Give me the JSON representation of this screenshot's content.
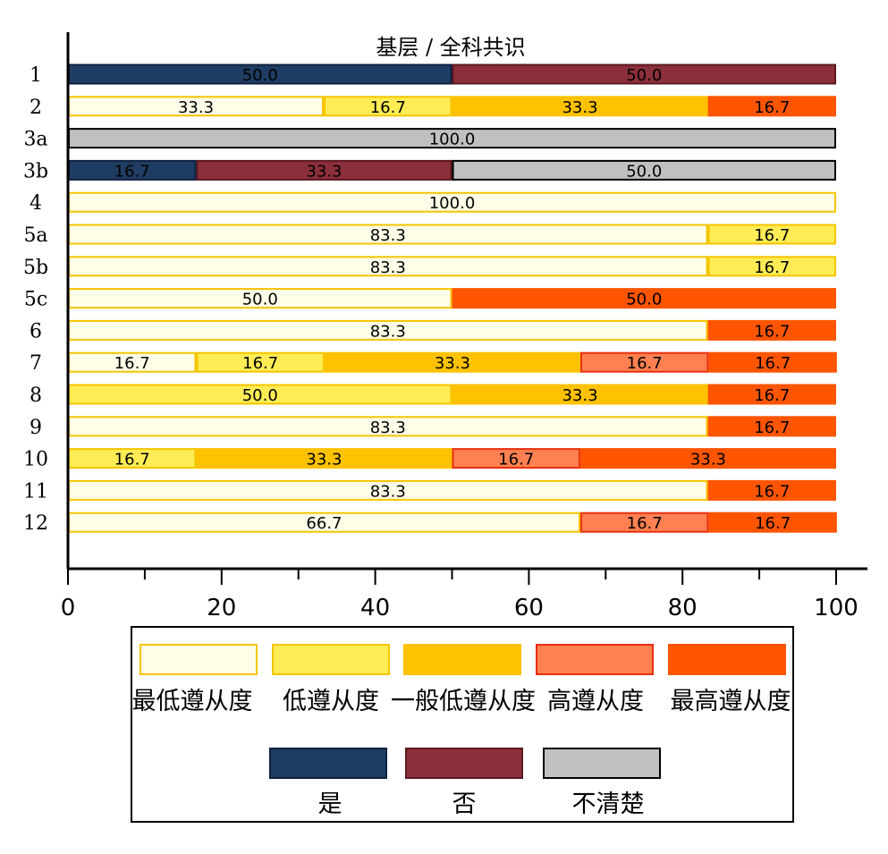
{
  "chart_data": {
    "type": "bar",
    "orientation": "horizontal",
    "stacked": true,
    "title": "基层 / 全科共识",
    "xlim": [
      0,
      100
    ],
    "x_ticks": [
      0,
      20,
      40,
      60,
      80,
      100
    ],
    "grid": false,
    "legend_position": "bottom",
    "categories": [
      "1",
      "2",
      "3a",
      "3b",
      "4",
      "5a",
      "5b",
      "5c",
      "6",
      "7",
      "8",
      "9",
      "10",
      "11",
      "12"
    ],
    "series_legend": [
      {
        "key": "lowest",
        "name": "最低遵从度",
        "fill": "#FEFEE8",
        "stroke": "#F5C400"
      },
      {
        "key": "low",
        "name": "低遵从度",
        "fill": "#FFEC55",
        "stroke": "#F5C400"
      },
      {
        "key": "mid",
        "name": "一般低遵从度",
        "fill": "#FFC200",
        "stroke": "#FFC200"
      },
      {
        "key": "high",
        "name": "高遵从度",
        "fill": "#FF8050",
        "stroke": "#E83010"
      },
      {
        "key": "highest",
        "name": "最高遵从度",
        "fill": "#FF5500",
        "stroke": "#FF5500"
      },
      {
        "key": "yes",
        "name": "是",
        "fill": "#1F3D62",
        "stroke": "#0F2040"
      },
      {
        "key": "no",
        "name": "否",
        "fill": "#8B2F3A",
        "stroke": "#5C1820"
      },
      {
        "key": "unclear",
        "name": "不清楚",
        "fill": "#C0C0C0",
        "stroke": "#000000"
      }
    ],
    "rows": [
      {
        "label": "1",
        "segments": [
          {
            "series": "yes",
            "value": 50.0,
            "label": "50.0"
          },
          {
            "series": "no",
            "value": 50.0,
            "label": "50.0"
          }
        ]
      },
      {
        "label": "2",
        "segments": [
          {
            "series": "lowest",
            "value": 33.3,
            "label": "33.3"
          },
          {
            "series": "low",
            "value": 16.7,
            "label": "16.7"
          },
          {
            "series": "mid",
            "value": 33.3,
            "label": "33.3"
          },
          {
            "series": "highest",
            "value": 16.7,
            "label": "16.7"
          }
        ]
      },
      {
        "label": "3a",
        "segments": [
          {
            "series": "unclear",
            "value": 100.0,
            "label": "100.0"
          }
        ]
      },
      {
        "label": "3b",
        "segments": [
          {
            "series": "yes",
            "value": 16.7,
            "label": "16.7"
          },
          {
            "series": "no",
            "value": 33.3,
            "label": "33.3"
          },
          {
            "series": "unclear",
            "value": 50.0,
            "label": "50.0"
          }
        ]
      },
      {
        "label": "4",
        "segments": [
          {
            "series": "lowest",
            "value": 100.0,
            "label": "100.0"
          }
        ]
      },
      {
        "label": "5a",
        "segments": [
          {
            "series": "lowest",
            "value": 83.3,
            "label": "83.3"
          },
          {
            "series": "low",
            "value": 16.7,
            "label": "16.7"
          }
        ]
      },
      {
        "label": "5b",
        "segments": [
          {
            "series": "lowest",
            "value": 83.3,
            "label": "83.3"
          },
          {
            "series": "low",
            "value": 16.7,
            "label": "16.7"
          }
        ]
      },
      {
        "label": "5c",
        "segments": [
          {
            "series": "lowest",
            "value": 50.0,
            "label": "50.0"
          },
          {
            "series": "highest",
            "value": 50.0,
            "label": "50.0"
          }
        ]
      },
      {
        "label": "6",
        "segments": [
          {
            "series": "lowest",
            "value": 83.3,
            "label": "83.3"
          },
          {
            "series": "highest",
            "value": 16.7,
            "label": "16.7"
          }
        ]
      },
      {
        "label": "7",
        "segments": [
          {
            "series": "lowest",
            "value": 16.7,
            "label": "16.7"
          },
          {
            "series": "low",
            "value": 16.7,
            "label": "16.7"
          },
          {
            "series": "mid",
            "value": 33.3,
            "label": "33.3"
          },
          {
            "series": "high",
            "value": 16.7,
            "label": "16.7"
          },
          {
            "series": "highest",
            "value": 16.7,
            "label": "16.7"
          }
        ]
      },
      {
        "label": "8",
        "segments": [
          {
            "series": "low",
            "value": 50.0,
            "label": "50.0"
          },
          {
            "series": "mid",
            "value": 33.3,
            "label": "33.3"
          },
          {
            "series": "highest",
            "value": 16.7,
            "label": "16.7"
          }
        ]
      },
      {
        "label": "9",
        "segments": [
          {
            "series": "lowest",
            "value": 83.3,
            "label": "83.3"
          },
          {
            "series": "highest",
            "value": 16.7,
            "label": "16.7"
          }
        ]
      },
      {
        "label": "10",
        "segments": [
          {
            "series": "low",
            "value": 16.7,
            "label": "16.7"
          },
          {
            "series": "mid",
            "value": 33.3,
            "label": "33.3"
          },
          {
            "series": "high",
            "value": 16.7,
            "label": "16.7"
          },
          {
            "series": "highest",
            "value": 33.3,
            "label": "33.3"
          }
        ]
      },
      {
        "label": "11",
        "segments": [
          {
            "series": "lowest",
            "value": 83.3,
            "label": "83.3"
          },
          {
            "series": "highest",
            "value": 16.7,
            "label": "16.7"
          }
        ]
      },
      {
        "label": "12",
        "segments": [
          {
            "series": "lowest",
            "value": 66.7,
            "label": "66.7"
          },
          {
            "series": "high",
            "value": 16.7,
            "label": "16.7"
          },
          {
            "series": "highest",
            "value": 16.7,
            "label": "16.7"
          }
        ]
      }
    ]
  }
}
